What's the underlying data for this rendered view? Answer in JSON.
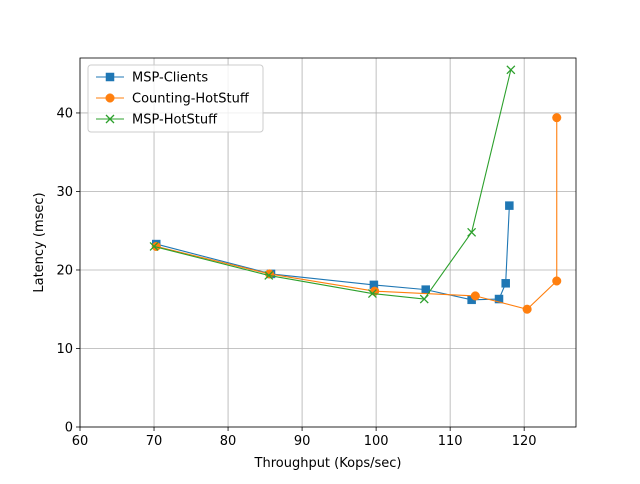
{
  "chart_data": {
    "type": "line",
    "title": "",
    "xlabel": "Throughput (Kops/sec)",
    "ylabel": "Latency (msec)",
    "xlim": [
      60,
      127
    ],
    "ylim": [
      0,
      47
    ],
    "xticks": [
      60,
      70,
      80,
      90,
      100,
      110,
      120
    ],
    "yticks": [
      0,
      10,
      20,
      30,
      40
    ],
    "grid": true,
    "legend_position": "upper-left",
    "series": [
      {
        "name": "MSP-Clients",
        "color": "#1f77b4",
        "marker": "square",
        "points": [
          [
            70.3,
            23.3
          ],
          [
            85.8,
            19.5
          ],
          [
            99.7,
            18.1
          ],
          [
            106.7,
            17.5
          ],
          [
            112.9,
            16.2
          ],
          [
            116.6,
            16.3
          ],
          [
            117.5,
            18.3
          ],
          [
            118.0,
            28.2
          ]
        ]
      },
      {
        "name": "Counting-HotStuff",
        "color": "#ff7f0e",
        "marker": "circle",
        "points": [
          [
            70.3,
            23.0
          ],
          [
            85.6,
            19.5
          ],
          [
            99.8,
            17.3
          ],
          [
            113.4,
            16.7
          ],
          [
            120.4,
            15.0
          ],
          [
            124.4,
            18.6
          ],
          [
            124.4,
            39.4
          ]
        ]
      },
      {
        "name": "MSP-HotStuff",
        "color": "#2ca02c",
        "marker": "x",
        "points": [
          [
            70.0,
            23.0
          ],
          [
            85.5,
            19.3
          ],
          [
            99.5,
            17.0
          ],
          [
            106.5,
            16.3
          ],
          [
            112.9,
            24.8
          ],
          [
            118.2,
            45.5
          ]
        ]
      }
    ]
  }
}
